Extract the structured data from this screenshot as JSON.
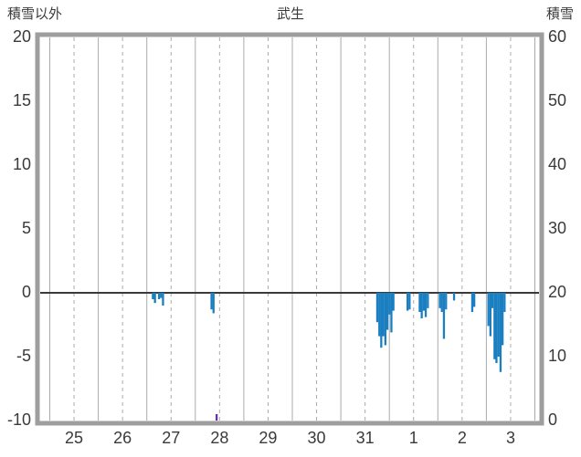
{
  "chart_data": {
    "type": "bar",
    "title": "武生",
    "left_axis_title": "積雪以外",
    "right_axis_title": "積雪",
    "left_ylim": [
      -10,
      20
    ],
    "right_ylim": [
      0,
      60
    ],
    "left_ticks": [
      20,
      15,
      10,
      5,
      0,
      -5,
      -10
    ],
    "right_ticks": [
      60,
      50,
      40,
      30,
      20,
      10,
      0
    ],
    "x_ticks": [
      "25",
      "26",
      "27",
      "28",
      "29",
      "30",
      "31",
      "1",
      "2",
      "3"
    ],
    "days": 10,
    "grid": {
      "solid_lines": "day-start",
      "dashed_lines": "noon",
      "zero_line": true
    },
    "legend_position": "none",
    "series": [
      {
        "name": "non-snow-precipitation-left-axis",
        "type": "bar",
        "color": "#1a7fc1",
        "unit_axis": "left",
        "bars_t_days_value": [
          [
            2.125,
            -0.5
          ],
          [
            2.167,
            -0.8
          ],
          [
            2.25,
            -0.5
          ],
          [
            2.292,
            -0.4
          ],
          [
            2.333,
            -1.0
          ],
          [
            3.333,
            -1.3
          ],
          [
            3.375,
            -1.6
          ],
          [
            6.75,
            -2.3
          ],
          [
            6.792,
            -3.4
          ],
          [
            6.833,
            -4.3
          ],
          [
            6.875,
            -3.4
          ],
          [
            6.917,
            -4.1
          ],
          [
            6.958,
            -2.9
          ],
          [
            7.0,
            -1.7
          ],
          [
            7.042,
            -3.1
          ],
          [
            7.083,
            -1.4
          ],
          [
            7.375,
            -1.4
          ],
          [
            7.417,
            -1.3
          ],
          [
            7.625,
            -1.5
          ],
          [
            7.667,
            -2.0
          ],
          [
            7.708,
            -1.4
          ],
          [
            7.75,
            -1.9
          ],
          [
            7.792,
            -1.2
          ],
          [
            8.042,
            -1.2
          ],
          [
            8.083,
            -1.5
          ],
          [
            8.125,
            -3.6
          ],
          [
            8.167,
            -1.3
          ],
          [
            8.333,
            -0.6
          ],
          [
            8.708,
            -1.5
          ],
          [
            8.75,
            -1.1
          ],
          [
            9.042,
            -2.6
          ],
          [
            9.083,
            -3.4
          ],
          [
            9.125,
            -1.2
          ],
          [
            9.167,
            -5.2
          ],
          [
            9.208,
            -5.5
          ],
          [
            9.25,
            -5.0
          ],
          [
            9.292,
            -6.2
          ],
          [
            9.333,
            -4.1
          ],
          [
            9.375,
            -1.5
          ]
        ]
      },
      {
        "name": "snow-right-axis",
        "type": "bar",
        "color": "#7030a0",
        "unit_axis": "right",
        "bars_t_days_value": [
          [
            3.438,
            1.0
          ]
        ]
      }
    ],
    "colors": {
      "bar": "#1a7fc1",
      "snow": "#7030a0",
      "frame": "#9e9e9e",
      "grid": "#ababab",
      "zero_line": "#3a3a3a",
      "text": "#3a3a3a",
      "background": "#ffffff"
    }
  }
}
